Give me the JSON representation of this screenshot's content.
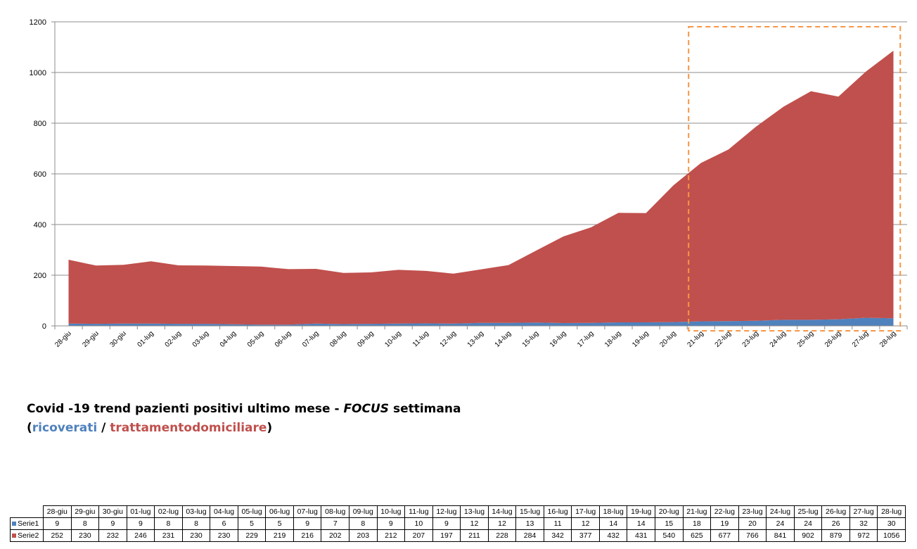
{
  "chart_data": {
    "type": "area",
    "stacked": true,
    "categories": [
      "28-giu",
      "29-giu",
      "30-giu",
      "01-lug",
      "02-lug",
      "03-lug",
      "04-lug",
      "05-lug",
      "06-lug",
      "07-lug",
      "08-lug",
      "09-lug",
      "10-lug",
      "11-lug",
      "12-lug",
      "13-lug",
      "14-lug",
      "15-lug",
      "16-lug",
      "17-lug",
      "18-lug",
      "19-lug",
      "20-lug",
      "21-lug",
      "22-lug",
      "23-lug",
      "24-lug",
      "25-lug",
      "26-lug",
      "27-lug",
      "28-lug"
    ],
    "series": [
      {
        "name": "Serie1",
        "color": "#4f81bd",
        "values": [
          9,
          8,
          9,
          9,
          8,
          8,
          6,
          5,
          5,
          9,
          7,
          8,
          9,
          10,
          9,
          12,
          12,
          13,
          11,
          12,
          14,
          14,
          15,
          18,
          19,
          20,
          24,
          24,
          26,
          32,
          30
        ]
      },
      {
        "name": "Serie2",
        "color": "#c0504d",
        "values": [
          252,
          230,
          232,
          246,
          231,
          230,
          230,
          229,
          219,
          216,
          202,
          203,
          212,
          207,
          197,
          211,
          228,
          284,
          342,
          377,
          432,
          431,
          540,
          625,
          677,
          766,
          841,
          902,
          879,
          972,
          1056
        ]
      }
    ],
    "ylim": [
      0,
      1200
    ],
    "yticks": [
      "0",
      "200",
      "400",
      "600",
      "800",
      "1000",
      "1200"
    ],
    "grid": true,
    "highlight": {
      "from": "21-lug",
      "to": "28-lug",
      "color": "#f79646",
      "style": "dashed"
    }
  },
  "caption": {
    "line1_a": "Covid -19 trend pazienti positivi ultimo mese - ",
    "line1_focus": "FOCUS",
    "line1_b": " settimana",
    "open_paren": "(",
    "ricoverati": "ricoverati",
    "slash": " / ",
    "trattamento": "trattamento",
    "domiciliare": "domiciliare",
    "close_paren": ")"
  }
}
